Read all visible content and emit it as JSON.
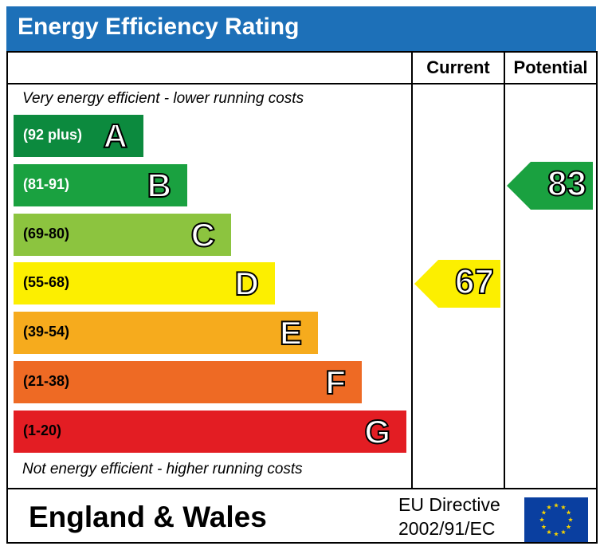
{
  "header": {
    "title": "Energy Efficiency Rating"
  },
  "columns": {
    "current": "Current",
    "potential": "Potential"
  },
  "notes": {
    "top": "Very energy efficient - lower running costs",
    "bottom": "Not energy efficient - higher running costs"
  },
  "chart_data": {
    "type": "bar",
    "title": "Energy Efficiency Rating",
    "categories": [
      "A",
      "B",
      "C",
      "D",
      "E",
      "F",
      "G"
    ],
    "bands": [
      {
        "letter": "A",
        "range": "(92 plus)",
        "color": "#0c8a3e",
        "text_color": "#ffffff"
      },
      {
        "letter": "B",
        "range": "(81-91)",
        "color": "#1aa140",
        "text_color": "#ffffff"
      },
      {
        "letter": "C",
        "range": "(69-80)",
        "color": "#8cc43f",
        "text_color": "#000000"
      },
      {
        "letter": "D",
        "range": "(55-68)",
        "color": "#fcef00",
        "text_color": "#000000"
      },
      {
        "letter": "E",
        "range": "(39-54)",
        "color": "#f6ab1d",
        "text_color": "#000000"
      },
      {
        "letter": "F",
        "range": "(21-38)",
        "color": "#ee6a24",
        "text_color": "#000000"
      },
      {
        "letter": "G",
        "range": "(1-20)",
        "color": "#e31d23",
        "text_color": "#000000"
      }
    ],
    "current": {
      "value": 67,
      "band": "D",
      "color": "#fcef00"
    },
    "potential": {
      "value": 83,
      "band": "B",
      "color": "#1aa140"
    }
  },
  "footer": {
    "region": "England & Wales",
    "directive_line1": "EU Directive",
    "directive_line2": "2002/91/EC"
  },
  "icons": {
    "eu_flag": "eu-flag-icon"
  },
  "colors": {
    "title_bar": "#1d70b8",
    "flag_blue": "#0a3fa0",
    "flag_star": "#f6d200"
  }
}
